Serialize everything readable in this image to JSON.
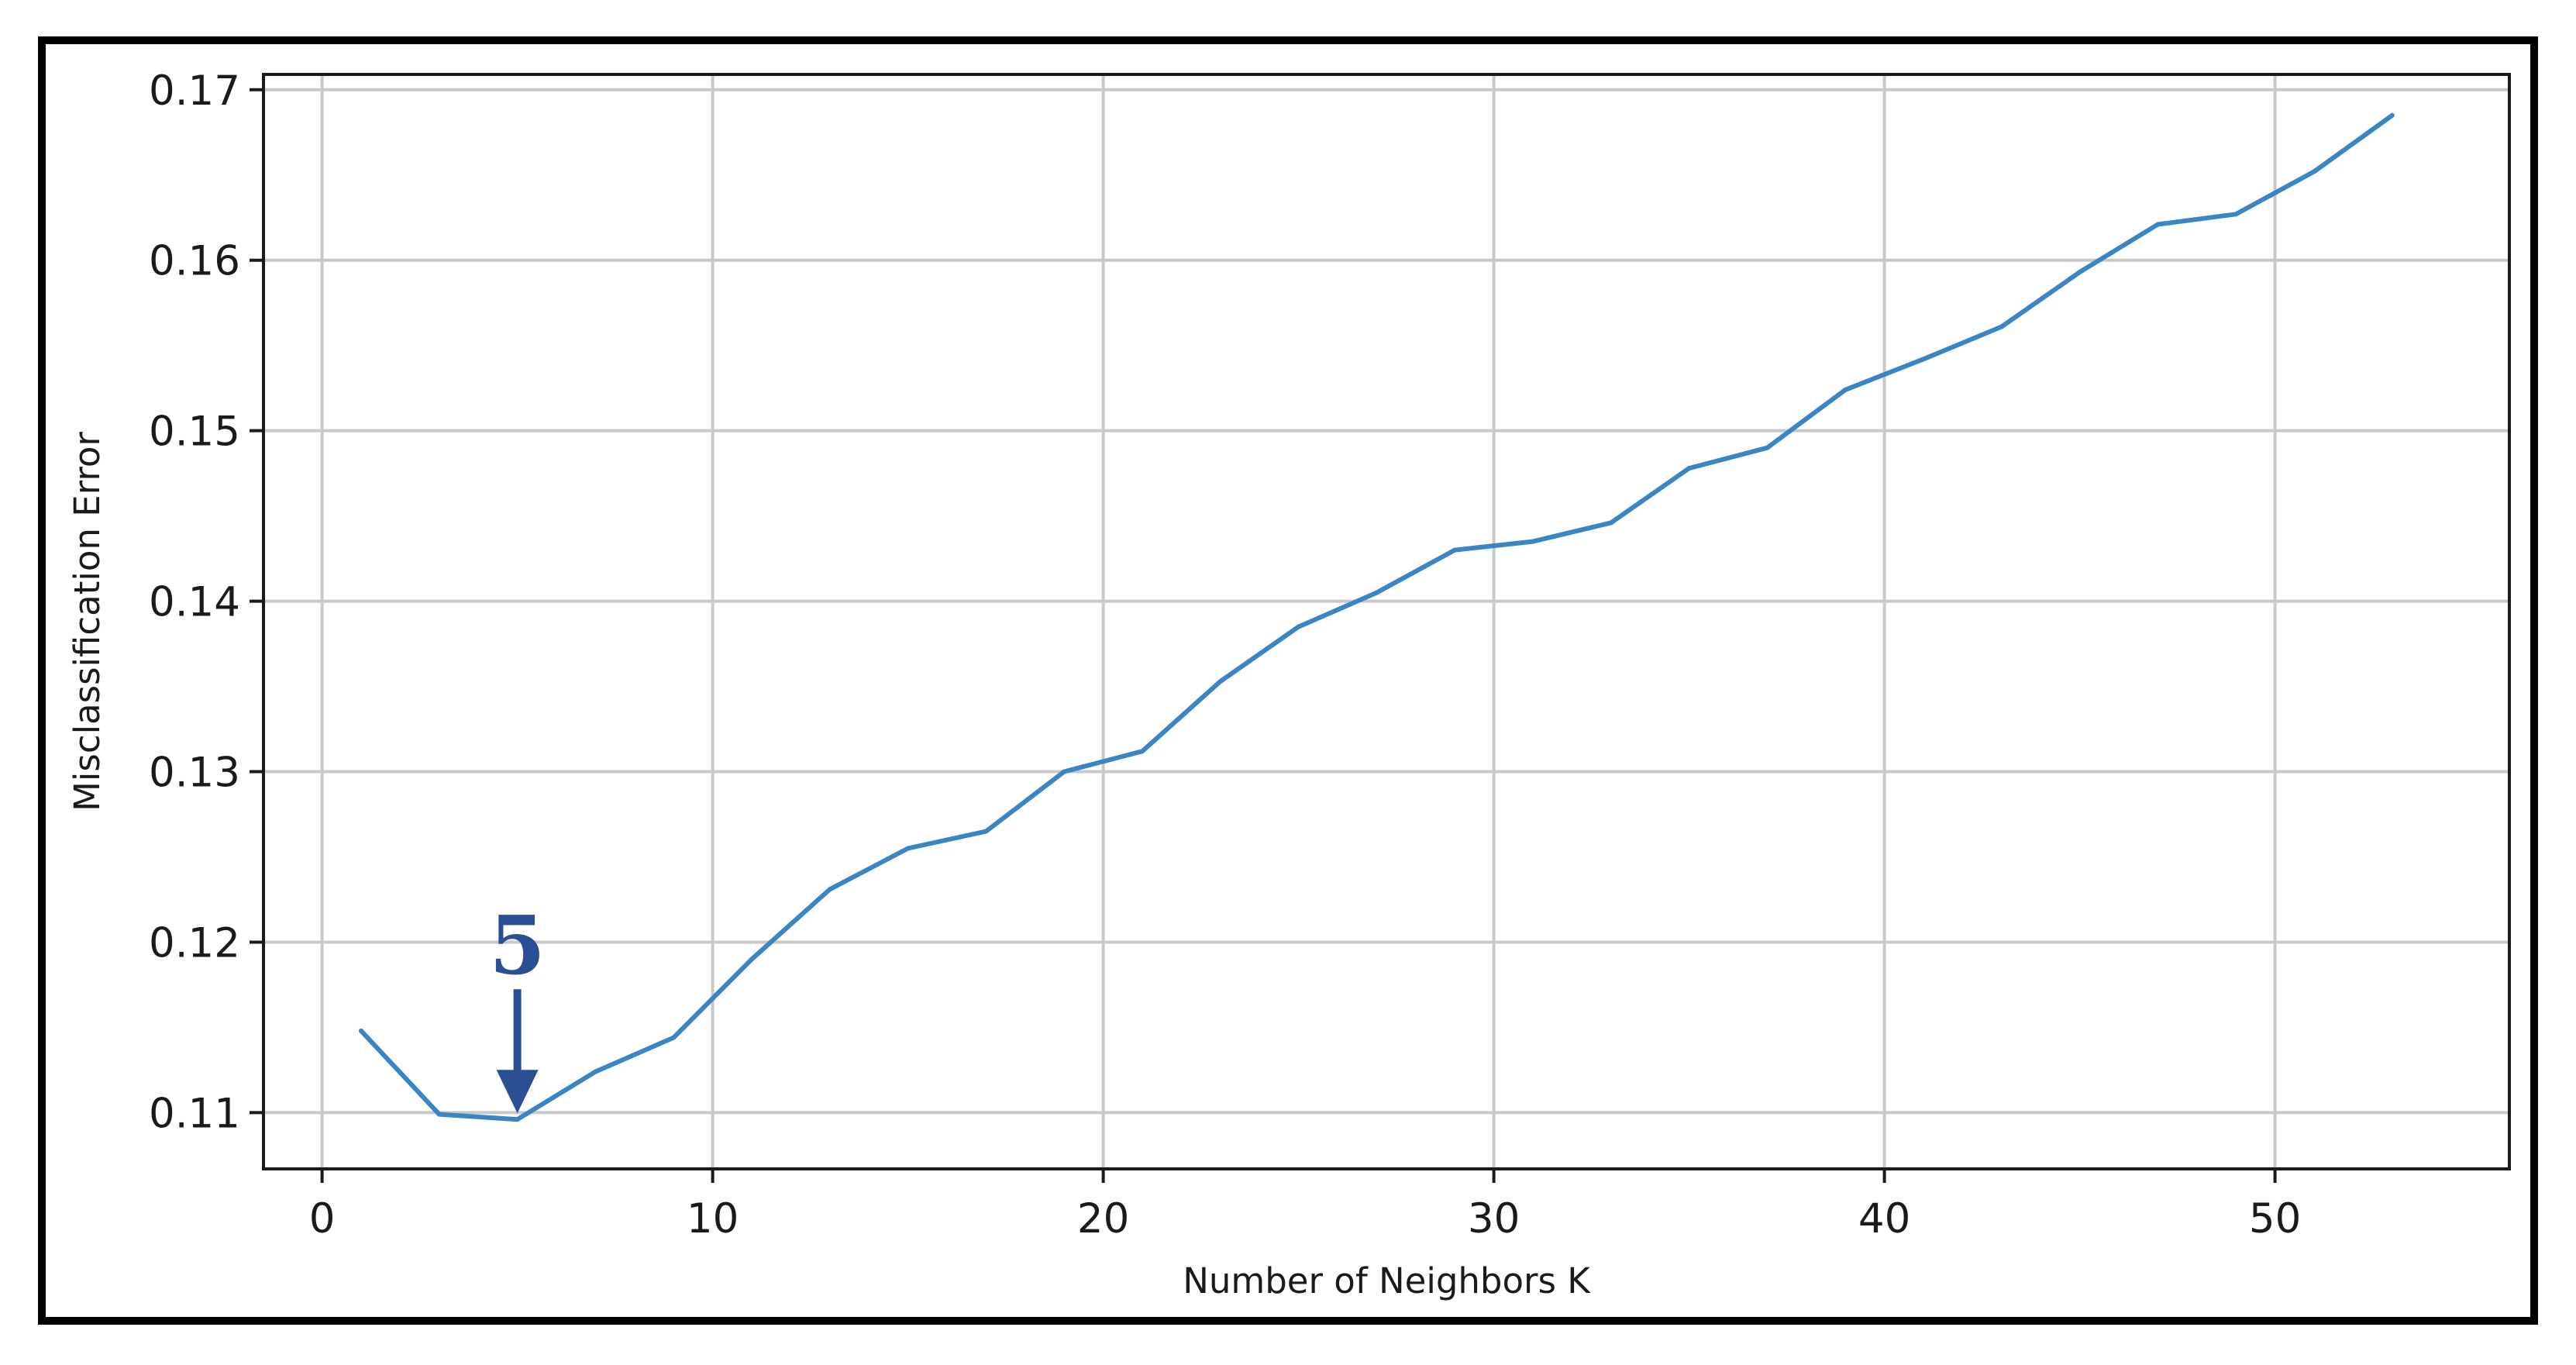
{
  "chart_data": {
    "type": "line",
    "title": "",
    "xlabel": "Number of Neighbors K",
    "ylabel": "Misclassification Error",
    "xlim": [
      -1.5,
      56
    ],
    "ylim": [
      0.1067,
      0.1709
    ],
    "xticks": [
      0,
      10,
      20,
      30,
      40,
      50
    ],
    "xtick_labels": [
      "0",
      "10",
      "20",
      "30",
      "40",
      "50"
    ],
    "yticks": [
      0.11,
      0.12,
      0.13,
      0.14,
      0.15,
      0.16,
      0.17
    ],
    "ytick_labels": [
      "0.11",
      "0.12",
      "0.13",
      "0.14",
      "0.15",
      "0.16",
      "0.17"
    ],
    "grid": true,
    "line_color": "#3a85c4",
    "series": [
      {
        "x": [
          1,
          3,
          5,
          7,
          9,
          11,
          13,
          15,
          17,
          19,
          21,
          23,
          25,
          27,
          29,
          31,
          33,
          35,
          37,
          39,
          41,
          43,
          45,
          47,
          49,
          51,
          53
        ],
        "values": [
          0.1148,
          0.1099,
          0.1096,
          0.1124,
          0.1144,
          0.119,
          0.1231,
          0.1255,
          0.1265,
          0.13,
          0.1312,
          0.1353,
          0.1385,
          0.1405,
          0.143,
          0.1435,
          0.1446,
          0.1478,
          0.149,
          0.1524,
          0.1542,
          0.1561,
          0.1593,
          0.1621,
          0.1627,
          0.1652,
          0.1685
        ]
      }
    ],
    "annotation": {
      "text": "5",
      "x": 5,
      "y": 0.1096,
      "color": "#2a4f92"
    }
  }
}
